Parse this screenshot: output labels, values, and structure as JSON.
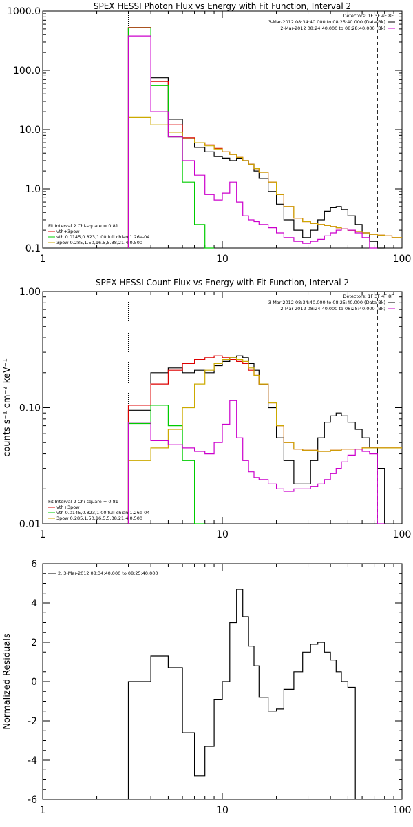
{
  "chart_data": [
    {
      "type": "line",
      "title": "SPEX HESSI Photon Flux vs Energy with Fit Function, Interval 2",
      "xscale": "log",
      "yscale": "log",
      "xlim": [
        1,
        100
      ],
      "ylim": [
        0.1,
        1000
      ],
      "x_tick_labels": [
        "1",
        "10",
        "100"
      ],
      "y_tick_labels": [
        "0.1",
        "1.0",
        "10.0",
        "100.0",
        "1000.0"
      ],
      "detectors_text": "Detectors: 1F 3F 4F 8F",
      "legend_top": [
        {
          "text": "3-Mar-2012 08:34:40.000 to 08:25:40.000 (Data-Bk)",
          "color": "#000000"
        },
        {
          "text": "2-Mar-2012 08:24:40.000 to 08:28:40.000 (Bk)",
          "color": "#cc00cc"
        }
      ],
      "fit_header": "Fit Interval 2   Chi-square = 0.81",
      "legend_bottom": [
        {
          "text": "vth+3pow",
          "color": "#dd0000"
        },
        {
          "text": "vth 0.0145,0.823,1.00  full chian 1.26e-04",
          "color": "#00cc00"
        },
        {
          "text": "3pow 0.285,1.50,16.5,5.38,21.4,0.500",
          "color": "#ccaa00"
        }
      ],
      "vlines": [
        {
          "x": 3.0,
          "style": "dotted"
        },
        {
          "x": 73,
          "style": "dashed"
        }
      ],
      "edges": [
        3.0,
        4.0,
        5.0,
        6.0,
        7.0,
        8.0,
        9.0,
        10.0,
        11.0,
        12.0,
        13.0,
        14.0,
        15.0,
        16.0,
        18.0,
        20.0,
        22.0,
        25.0,
        28.0,
        31.0,
        34.0,
        37.0,
        40.0,
        43.0,
        46.0,
        50.0,
        55.0,
        60.0,
        66.0,
        73.0,
        80.0,
        88.0,
        100.0
      ],
      "series": [
        {
          "color": "#000000",
          "values": [
            520,
            75,
            15,
            7.0,
            5.0,
            4.2,
            3.5,
            3.3,
            3.0,
            3.3,
            3.0,
            2.6,
            2.0,
            1.5,
            0.9,
            0.55,
            0.3,
            0.2,
            0.15,
            0.2,
            0.3,
            0.42,
            0.48,
            0.5,
            0.45,
            0.35,
            0.25,
            0.18,
            0.13,
            0.1
          ]
        },
        {
          "color": "#dd0000",
          "values": [
            530,
            65,
            12,
            7.3,
            6.0,
            5.5,
            4.8,
            4.2,
            3.8,
            3.4,
            3.0,
            2.6,
            2.2,
            1.9,
            1.3,
            0.8,
            0.5,
            0.32,
            0.28,
            0.26,
            0.25,
            0.24,
            0.23,
            0.22,
            0.21,
            0.2,
            0.19,
            0.18,
            0.17,
            0.165,
            0.16,
            0.15
          ]
        },
        {
          "color": "#00cc00",
          "values": [
            520,
            55,
            7.5,
            1.3,
            0.25,
            0.05
          ]
        },
        {
          "color": "#ccaa00",
          "values": [
            16,
            12,
            9,
            7.0,
            6.0,
            5.3,
            4.7,
            4.2,
            3.8,
            3.4,
            3.0,
            2.6,
            2.2,
            1.9,
            1.3,
            0.8,
            0.5,
            0.32,
            0.28,
            0.26,
            0.25,
            0.24,
            0.23,
            0.22,
            0.21,
            0.2,
            0.19,
            0.18,
            0.17,
            0.165,
            0.16,
            0.15
          ]
        },
        {
          "color": "#cc00cc",
          "values": [
            380,
            20,
            7.5,
            3.0,
            1.7,
            0.8,
            0.65,
            0.85,
            1.3,
            0.6,
            0.35,
            0.3,
            0.28,
            0.25,
            0.22,
            0.18,
            0.15,
            0.13,
            0.12,
            0.13,
            0.14,
            0.16,
            0.18,
            0.2,
            0.21,
            0.2,
            0.18,
            0.15,
            0.1
          ]
        }
      ]
    },
    {
      "type": "line",
      "title": "SPEX HESSI Count Flux vs Energy with Fit Function, Interval 2",
      "ylabel": "counts s⁻¹ cm⁻² keV⁻¹",
      "xscale": "log",
      "yscale": "log",
      "xlim": [
        1,
        100
      ],
      "ylim": [
        0.01,
        1
      ],
      "x_tick_labels": [
        "1",
        "10",
        "100"
      ],
      "y_tick_labels": [
        "0.01",
        "0.10",
        "1.00"
      ],
      "detectors_text": "Detectors: 1F 3F 4F 8F",
      "legend_top": [
        {
          "text": "3-Mar-2012 08:34:40.000 to 08:25:40.000 (Data-Bk)",
          "color": "#000000"
        },
        {
          "text": "2-Mar-2012 08:24:40.000 to 08:28:40.000 (Bk)",
          "color": "#cc00cc"
        }
      ],
      "fit_header": "Fit Interval 2   Chi-square = 0.81",
      "legend_bottom": [
        {
          "text": "vth+3pow",
          "color": "#dd0000"
        },
        {
          "text": "vth 0.0145,0.823,1.00  full chian 1.26e-04",
          "color": "#00cc00"
        },
        {
          "text": "3pow 0.285,1.50,16.5,5.38,21.4,0.500",
          "color": "#ccaa00"
        }
      ],
      "vlines": [
        {
          "x": 3.0,
          "style": "dotted"
        },
        {
          "x": 73,
          "style": "dashed"
        }
      ],
      "edges": [
        3.0,
        4.0,
        5.0,
        6.0,
        7.0,
        8.0,
        9.0,
        10.0,
        11.0,
        12.0,
        13.0,
        14.0,
        15.0,
        16.0,
        18.0,
        20.0,
        22.0,
        25.0,
        28.0,
        31.0,
        34.0,
        37.0,
        40.0,
        43.0,
        46.0,
        50.0,
        55.0,
        60.0,
        66.0,
        73.0,
        80.0,
        88.0,
        100.0
      ],
      "series": [
        {
          "color": "#000000",
          "values": [
            0.095,
            0.2,
            0.22,
            0.2,
            0.21,
            0.2,
            0.23,
            0.25,
            0.27,
            0.28,
            0.27,
            0.24,
            0.21,
            0.16,
            0.1,
            0.055,
            0.035,
            0.022,
            0.022,
            0.035,
            0.055,
            0.075,
            0.085,
            0.09,
            0.085,
            0.075,
            0.065,
            0.055,
            0.045,
            0.03
          ]
        },
        {
          "color": "#dd0000",
          "values": [
            0.105,
            0.16,
            0.21,
            0.24,
            0.26,
            0.27,
            0.28,
            0.27,
            0.26,
            0.25,
            0.24,
            0.21,
            0.19,
            0.16,
            0.11,
            0.07,
            0.05,
            0.044,
            0.043,
            0.043,
            0.042,
            0.042,
            0.043,
            0.043,
            0.044,
            0.044,
            0.044,
            0.045,
            0.045,
            0.045,
            0.045,
            0.045
          ]
        },
        {
          "color": "#00cc00",
          "values": [
            0.073,
            0.105,
            0.07,
            0.035,
            0.001
          ]
        },
        {
          "color": "#ccaa00",
          "values": [
            0.035,
            0.045,
            0.065,
            0.1,
            0.16,
            0.21,
            0.24,
            0.26,
            0.27,
            0.26,
            0.25,
            0.22,
            0.19,
            0.16,
            0.11,
            0.07,
            0.05,
            0.044,
            0.043,
            0.043,
            0.042,
            0.042,
            0.043,
            0.043,
            0.044,
            0.044,
            0.044,
            0.045,
            0.045,
            0.045,
            0.045,
            0.045
          ]
        },
        {
          "color": "#cc00cc",
          "values": [
            0.075,
            0.052,
            0.048,
            0.045,
            0.042,
            0.04,
            0.05,
            0.072,
            0.115,
            0.055,
            0.035,
            0.028,
            0.025,
            0.024,
            0.022,
            0.02,
            0.019,
            0.02,
            0.02,
            0.021,
            0.022,
            0.024,
            0.027,
            0.03,
            0.034,
            0.039,
            0.044,
            0.042,
            0.04,
            0.001
          ]
        }
      ]
    },
    {
      "type": "line",
      "title": "",
      "ylabel": "Normalized Residuals",
      "xscale": "log",
      "yscale": "linear",
      "xlim": [
        1,
        100
      ],
      "ylim": [
        -6,
        6
      ],
      "x_tick_labels": [
        "1",
        "10",
        "100"
      ],
      "y_tick_labels": [
        "-6",
        "-4",
        "-2",
        "0",
        "2",
        "4",
        "6"
      ],
      "legend_top": [
        {
          "text": "2.  3-Mar-2012 08:34:40.000 to 08:25:40.000",
          "color": "#000000"
        }
      ],
      "edges": [
        3.0,
        4.0,
        5.0,
        6.0,
        7.0,
        8.0,
        9.0,
        10.0,
        11.0,
        12.0,
        13.0,
        14.0,
        15.0,
        16.0,
        18.0,
        20.0,
        22.0,
        25.0,
        28.0,
        31.0,
        34.0,
        37.0,
        40.0,
        43.0,
        46.0,
        50.0,
        55.0,
        60.0,
        66.0,
        73.0
      ],
      "series": [
        {
          "color": "#000000",
          "values": [
            0.0,
            1.3,
            0.7,
            -2.6,
            -4.8,
            -3.3,
            -0.9,
            0.0,
            3.0,
            4.7,
            3.3,
            1.8,
            0.8,
            -0.8,
            -1.5,
            -1.4,
            -0.4,
            0.5,
            1.5,
            1.9,
            2.0,
            1.5,
            1.1,
            0.5,
            0.0,
            -0.3
          ]
        }
      ]
    }
  ]
}
